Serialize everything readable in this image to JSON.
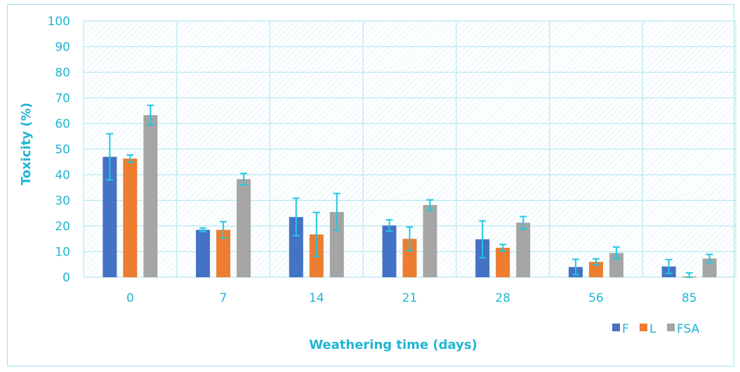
{
  "chart_data": {
    "type": "bar",
    "categories": [
      "0",
      "7",
      "14",
      "21",
      "28",
      "56",
      "85"
    ],
    "series": [
      {
        "name": "F",
        "values": [
          47,
          18.5,
          23.5,
          20.2,
          14.8,
          4,
          4.2
        ],
        "errors": [
          9,
          0.7,
          7.3,
          2.2,
          7.2,
          3,
          2.7
        ],
        "color": "#4472c4"
      },
      {
        "name": "L",
        "values": [
          46.3,
          18.5,
          16.7,
          15,
          11.5,
          6,
          0.3
        ],
        "errors": [
          1.4,
          3.2,
          8.6,
          4.6,
          1.3,
          1.2,
          1.4
        ],
        "color": "#ed7d31"
      },
      {
        "name": "FSA",
        "values": [
          63.3,
          38.3,
          25.5,
          28.2,
          21.3,
          9.5,
          7.3
        ],
        "errors": [
          3.8,
          2.2,
          7.2,
          2,
          2.4,
          2.3,
          1.6
        ],
        "color": "#a5a5a5"
      }
    ],
    "xlabel": "Weathering time (days)",
    "ylabel": "Toxicity (%)",
    "ylim": [
      0,
      100
    ],
    "yticks": [
      "0",
      "10",
      "20",
      "30",
      "40",
      "50",
      "60",
      "70",
      "80",
      "90",
      "100"
    ],
    "grid": true,
    "legend_position": "bottom-right",
    "error_bar_color": "#1fc8e3",
    "axis_text_color": "#1fb6d4"
  }
}
